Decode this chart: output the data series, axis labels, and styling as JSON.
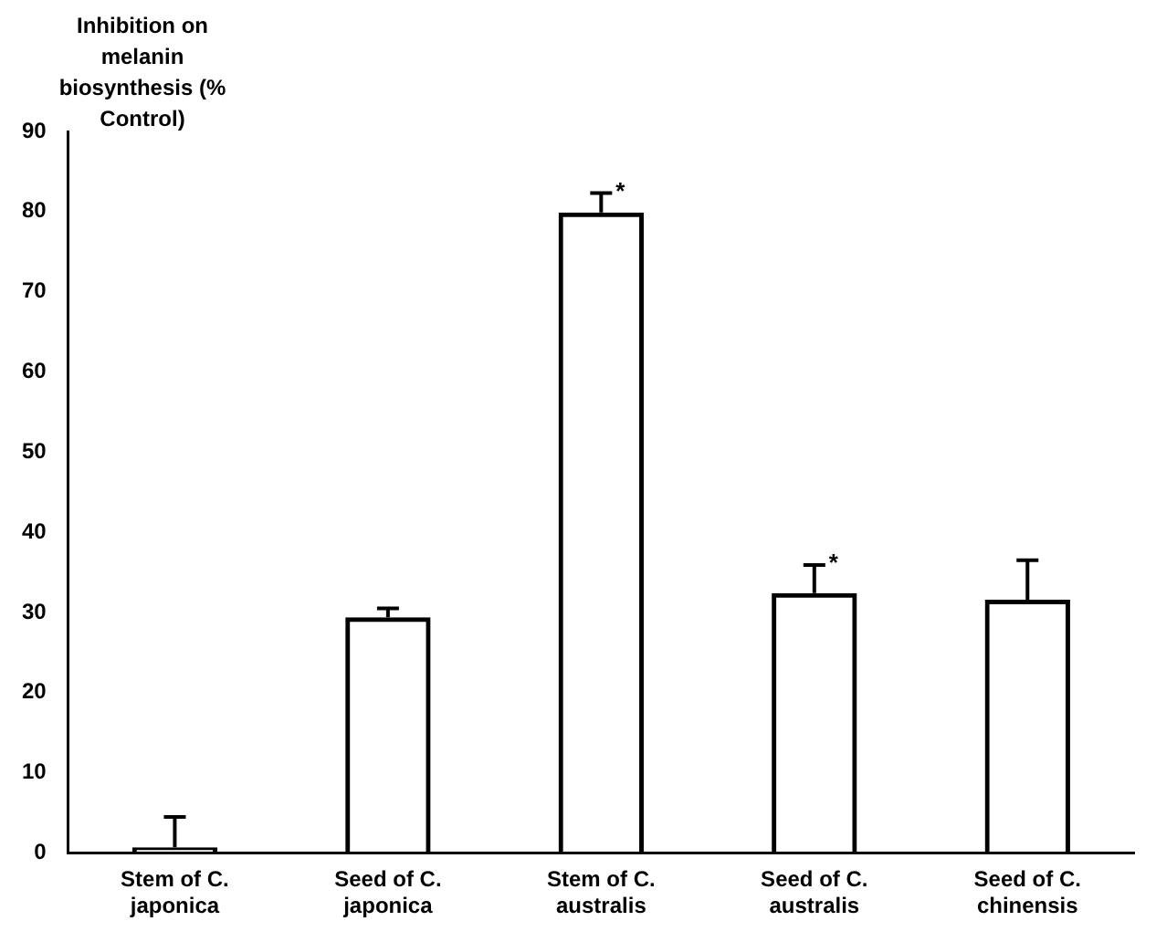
{
  "chart_data": {
    "type": "bar",
    "ylabel": "Inhibition on melanin biosynthesis (% Control)",
    "categories": [
      "Stem of C. japonica",
      "Seed of C. japonica",
      "Stem of C. australis",
      "Seed of C. australis",
      "Seed of C. chinensis"
    ],
    "values": [
      0.7,
      29.4,
      79.9,
      32.4,
      31.6
    ],
    "errors": [
      [
        0.7,
        4.5
      ],
      [
        29.4,
        30.5
      ],
      [
        79.9,
        82.3
      ],
      [
        32.4,
        35.9
      ],
      [
        31.6,
        36.5
      ]
    ],
    "color": "#000000",
    "annotations": [
      {
        "text": "*",
        "x": "Stem of C. australis",
        "y": 82.3
      },
      {
        "text": "*",
        "x": "Seed of C. australis",
        "y": 35.9
      }
    ],
    "ylim": [
      0,
      90
    ],
    "yticks": [
      0,
      10,
      20,
      30,
      40,
      50,
      60,
      70,
      80,
      90
    ],
    "grid": false,
    "legend": false
  }
}
